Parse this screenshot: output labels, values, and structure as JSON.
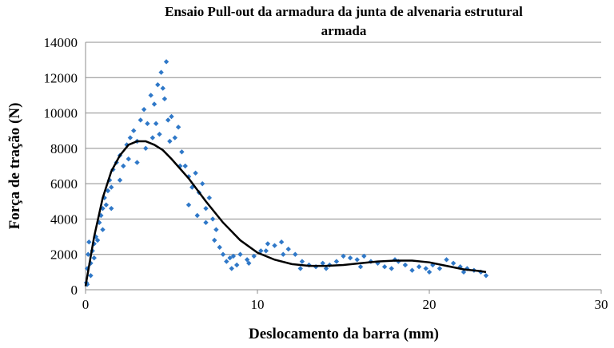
{
  "chart_data": {
    "type": "scatter",
    "title": [
      "Ensaio Pull-out da armadura da junta de alvenaria estrutural",
      "armada"
    ],
    "x_label": "Deslocamento da barra (mm)",
    "y_label": "Força de tração (N)",
    "xlim": [
      0,
      30
    ],
    "xticks": [
      0,
      10,
      20,
      30
    ],
    "ylim": [
      0,
      14000
    ],
    "yticks": [
      0,
      2000,
      4000,
      6000,
      8000,
      10000,
      12000,
      14000
    ],
    "grid": true,
    "series": [
      {
        "type": "scatter",
        "color": "#2f78c8",
        "x": [
          0.05,
          0.1,
          0.15,
          0.2,
          0.3,
          0.4,
          0.5,
          0.6,
          0.7,
          0.8,
          0.9,
          1.0,
          1.1,
          1.2,
          1.3,
          1.4,
          1.5,
          1.6,
          1.8,
          2.0,
          2.2,
          2.4,
          2.6,
          2.8,
          3.0,
          3.2,
          3.4,
          3.6,
          3.8,
          4.0,
          4.2,
          4.4,
          4.6,
          4.7,
          4.8,
          5.0,
          5.2,
          5.4,
          5.6,
          5.8,
          6.0,
          6.2,
          6.4,
          6.6,
          6.8,
          7.0,
          7.2,
          7.4,
          7.6,
          7.8,
          8.0,
          8.2,
          8.4,
          8.6,
          8.8,
          9.0,
          9.4,
          9.8,
          10.2,
          10.6,
          11.0,
          11.4,
          11.8,
          12.2,
          12.6,
          13.0,
          13.4,
          13.8,
          14.2,
          14.6,
          15.0,
          15.4,
          15.8,
          16.2,
          16.6,
          17.0,
          17.4,
          17.8,
          18.2,
          18.6,
          19.0,
          19.4,
          19.8,
          20.2,
          20.6,
          21.0,
          21.4,
          21.8,
          22.2,
          22.6,
          23.0,
          23.3,
          0.1,
          0.3,
          0.5,
          1.0,
          1.5,
          2.0,
          2.5,
          3.0,
          3.5,
          3.9,
          4.1,
          4.3,
          4.5,
          4.9,
          5.5,
          6.0,
          6.5,
          7.0,
          7.5,
          8.5,
          9.5,
          10.5,
          11.5,
          12.5,
          14,
          16,
          18,
          20,
          22
        ],
        "values": [
          400,
          1200,
          2000,
          2700,
          1500,
          2200,
          2600,
          3000,
          2800,
          3800,
          4200,
          4600,
          5200,
          4800,
          5600,
          6200,
          5800,
          6800,
          7200,
          7600,
          7000,
          8200,
          8600,
          9000,
          8400,
          9600,
          10200,
          9400,
          11000,
          10500,
          11600,
          12300,
          10800,
          12900,
          9600,
          9800,
          8600,
          9200,
          7800,
          7000,
          6400,
          5800,
          6600,
          5500,
          6000,
          4600,
          5200,
          4000,
          3400,
          2400,
          2000,
          1600,
          1800,
          1900,
          1400,
          2000,
          1700,
          1900,
          2200,
          2600,
          2500,
          2700,
          2300,
          2000,
          1600,
          1400,
          1300,
          1500,
          1400,
          1600,
          1900,
          1800,
          1700,
          1900,
          1600,
          1500,
          1300,
          1200,
          1600,
          1400,
          1100,
          1300,
          1200,
          1400,
          1200,
          1700,
          1500,
          1300,
          1200,
          1100,
          1000,
          800,
          300,
          800,
          1800,
          3400,
          4600,
          6200,
          7400,
          7200,
          8000,
          8600,
          9400,
          8800,
          11400,
          8400,
          7000,
          4800,
          4200,
          3800,
          2800,
          1200,
          1500,
          2200,
          2000,
          1200,
          1200,
          1300,
          1700,
          1000,
          1000
        ]
      },
      {
        "type": "line",
        "color": "#000000",
        "x": [
          0,
          0.5,
          1,
          1.5,
          2,
          2.5,
          3,
          3.5,
          4,
          4.5,
          5,
          6,
          7,
          8,
          9,
          10,
          11,
          12,
          13,
          14,
          15,
          16,
          17,
          18,
          19,
          20,
          21,
          22,
          23,
          23.3
        ],
        "values": [
          200,
          3000,
          5200,
          6700,
          7600,
          8200,
          8400,
          8400,
          8200,
          7900,
          7400,
          6300,
          5000,
          3800,
          2800,
          2100,
          1700,
          1450,
          1350,
          1350,
          1400,
          1500,
          1600,
          1650,
          1650,
          1550,
          1350,
          1150,
          1050,
          1000
        ]
      }
    ]
  }
}
